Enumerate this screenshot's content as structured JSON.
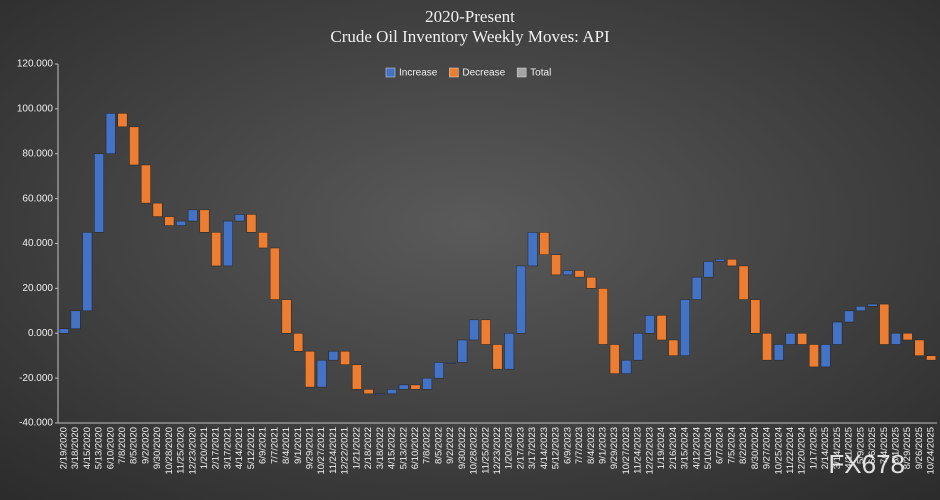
{
  "chart_data": {
    "type": "waterfall",
    "title": "2020-Present",
    "subtitle": "Crude Oil Inventory Weekly Moves: API",
    "legend": [
      {
        "name": "Increase",
        "color": "#4472c4"
      },
      {
        "name": "Decrease",
        "color": "#ed7d31"
      },
      {
        "name": "Total",
        "color": "#a5a5a5"
      }
    ],
    "legend_position": "top",
    "categories": [
      "2/19/2020",
      "3/18/2020",
      "4/15/2020",
      "5/13/2020",
      "6/10/2020",
      "7/8/2020",
      "8/5/2020",
      "9/2/2020",
      "9/30/2020",
      "10/28/2020",
      "11/25/2020",
      "12/23/2020",
      "1/20/2021",
      "2/17/2021",
      "3/17/2021",
      "4/14/2021",
      "5/12/2021",
      "6/9/2021",
      "7/7/2021",
      "8/4/2021",
      "9/1/2021",
      "9/29/2021",
      "10/27/2021",
      "11/24/2021",
      "12/22/2021",
      "1/21/2022",
      "2/18/2022",
      "3/18/2022",
      "4/15/2022",
      "5/13/2022",
      "6/10/2022",
      "7/8/2022",
      "8/5/2022",
      "9/2/2022",
      "9/30/2022",
      "10/28/2022",
      "11/25/2022",
      "12/23/2022",
      "1/20/2023",
      "2/17/2023",
      "3/17/2023",
      "4/14/2023",
      "5/12/2023",
      "6/9/2023",
      "7/7/2023",
      "8/4/2023",
      "9/1/2023",
      "9/29/2023",
      "10/27/2023",
      "11/24/2023",
      "12/22/2023",
      "1/19/2024",
      "2/16/2024",
      "3/15/2024",
      "4/12/2024",
      "5/10/2024",
      "6/7/2024",
      "7/5/2024",
      "8/2/2024",
      "8/30/2024",
      "9/27/2024",
      "10/25/2024",
      "11/22/2024",
      "12/20/2024",
      "1/17/2025",
      "2/14/2025",
      "3/14/2025",
      "4/11/2025",
      "5/9/2025",
      "6/6/2025",
      "7/4/2025",
      "8/1/2025",
      "8/29/2025",
      "9/26/2025",
      "10/24/2025"
    ],
    "values": [
      2,
      8,
      35,
      35,
      18,
      -6,
      -17,
      -17,
      -6,
      -4,
      2,
      5,
      -10,
      -15,
      20,
      3,
      -8,
      -7,
      -23,
      -15,
      -8,
      -16,
      12,
      4,
      -6,
      -11,
      -2,
      0,
      2,
      2,
      -2,
      5,
      7,
      0,
      10,
      9,
      -11,
      -11,
      16,
      30,
      15,
      -10,
      -9,
      2,
      -3,
      -5,
      -25,
      -13,
      6,
      12,
      8,
      -11,
      -7,
      25,
      10,
      7,
      1,
      -3,
      -15,
      -15,
      -12,
      7,
      5,
      -5,
      -10,
      10,
      10,
      5,
      2,
      1,
      -18,
      5,
      -3,
      -7,
      -2
    ],
    "ylim": [
      -40,
      120
    ],
    "yticks": [
      {
        "value": -40,
        "label": "-40.000"
      },
      {
        "value": -20,
        "label": "-20.000"
      },
      {
        "value": 0,
        "label": "0.000"
      },
      {
        "value": 20,
        "label": "20.000"
      },
      {
        "value": 40,
        "label": "40.000"
      },
      {
        "value": 60,
        "label": "60.000"
      },
      {
        "value": 80,
        "label": "80.000"
      },
      {
        "value": 100,
        "label": "100.000"
      },
      {
        "value": 120,
        "label": "120.000"
      }
    ],
    "grid": false
  },
  "watermark": "FX678"
}
